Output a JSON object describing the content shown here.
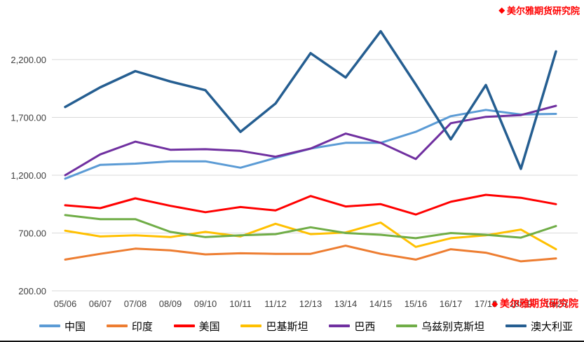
{
  "watermark": {
    "logo_glyph": "◆",
    "text": "美尔雅期货研究院"
  },
  "chart_data": {
    "type": "line",
    "title": "",
    "xlabel": "",
    "ylabel": "",
    "grid": true,
    "legend_position": "bottom",
    "ylim": [
      200,
      2530
    ],
    "yticks": [
      {
        "value": 200,
        "label": "200.00"
      },
      {
        "value": 700,
        "label": "700.00"
      },
      {
        "value": 1200,
        "label": "1,200.00"
      },
      {
        "value": 1700,
        "label": "1,700.00"
      },
      {
        "value": 2200,
        "label": "2,200.00"
      }
    ],
    "categories": [
      "05/06",
      "06/07",
      "07/08",
      "08/09",
      "09/10",
      "10/11",
      "11/12",
      "12/13",
      "13/14",
      "14/15",
      "15/16",
      "16/17",
      "17/18",
      "18/19",
      "19/20"
    ],
    "series": [
      {
        "id": "china",
        "name": "中国",
        "color": "#5B9BD5",
        "values": [
          1170,
          1290,
          1300,
          1320,
          1320,
          1265,
          1350,
          1430,
          1480,
          1480,
          1575,
          1710,
          1765,
          1725,
          1730
        ]
      },
      {
        "id": "india",
        "name": "印度",
        "color": "#ED7D31",
        "values": [
          470,
          520,
          565,
          550,
          515,
          525,
          520,
          520,
          590,
          520,
          470,
          560,
          530,
          455,
          480
        ]
      },
      {
        "id": "usa",
        "name": "美国",
        "color": "#FF0000",
        "values": [
          940,
          915,
          1000,
          935,
          880,
          925,
          895,
          1020,
          930,
          950,
          860,
          970,
          1030,
          1005,
          950
        ]
      },
      {
        "id": "pakistan",
        "name": "巴基斯坦",
        "color": "#FFC000",
        "values": [
          720,
          670,
          680,
          665,
          710,
          670,
          780,
          690,
          705,
          790,
          580,
          655,
          680,
          730,
          560
        ]
      },
      {
        "id": "brazil",
        "name": "巴西",
        "color": "#7030A0",
        "values": [
          1200,
          1380,
          1490,
          1420,
          1425,
          1410,
          1360,
          1430,
          1560,
          1480,
          1340,
          1650,
          1705,
          1720,
          1800
        ]
      },
      {
        "id": "uzbekistan",
        "name": "乌兹别克斯坦",
        "color": "#70AD47",
        "values": [
          855,
          820,
          820,
          710,
          665,
          680,
          690,
          750,
          700,
          685,
          655,
          700,
          685,
          660,
          760
        ]
      },
      {
        "id": "australia",
        "name": "澳大利亚",
        "color": "#255E91",
        "values": [
          1790,
          1960,
          2100,
          2010,
          1935,
          1575,
          1820,
          2255,
          2045,
          2445,
          1985,
          1510,
          1980,
          1255,
          2270
        ]
      }
    ]
  }
}
